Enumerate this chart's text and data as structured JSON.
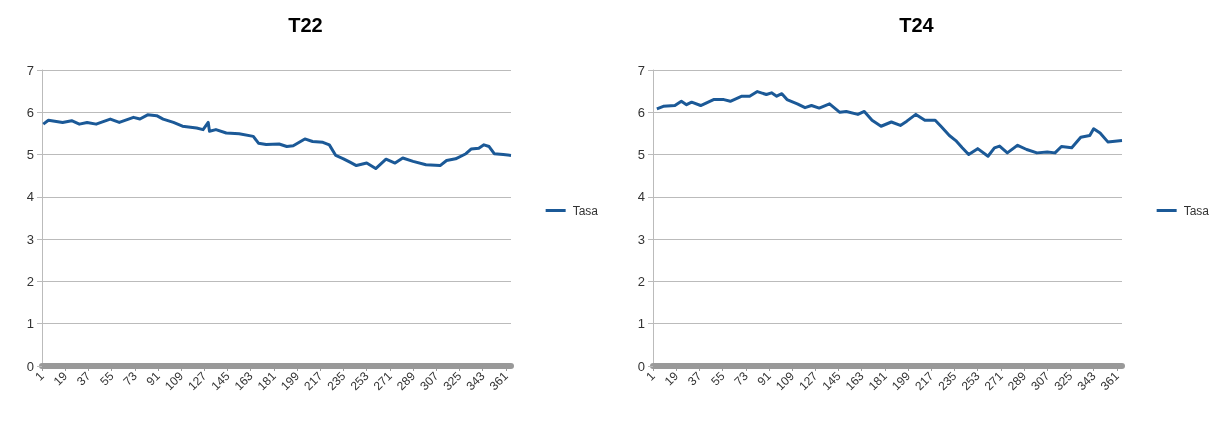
{
  "chart_data": [
    {
      "type": "line",
      "title": "T22",
      "legend": "right",
      "grid": "y",
      "marker": "none",
      "line_style": "solid",
      "xlim": [
        1,
        365
      ],
      "xticks": [
        1,
        19,
        37,
        55,
        73,
        91,
        109,
        127,
        145,
        163,
        181,
        199,
        217,
        235,
        253,
        271,
        289,
        307,
        325,
        343,
        361
      ],
      "ylim": [
        0,
        7
      ],
      "yticks": [
        0,
        1,
        2,
        3,
        4,
        5,
        6,
        7
      ],
      "series": [
        {
          "name": "Tasa",
          "color": "#1b5997",
          "x": [
            2,
            6,
            17,
            24,
            30,
            36,
            43,
            54,
            61,
            72,
            77,
            83,
            90,
            95,
            103,
            110,
            121,
            126,
            130,
            131,
            136,
            144,
            154,
            165,
            169,
            175,
            185,
            191,
            196,
            205,
            211,
            219,
            224,
            229,
            235,
            240,
            245,
            253,
            260,
            268,
            275,
            281,
            289,
            299,
            310,
            315,
            322,
            330,
            334,
            340,
            344,
            348,
            352,
            359,
            365
          ],
          "values": [
            5.72,
            5.81,
            5.76,
            5.8,
            5.72,
            5.76,
            5.72,
            5.84,
            5.76,
            5.88,
            5.84,
            5.94,
            5.92,
            5.84,
            5.76,
            5.67,
            5.63,
            5.59,
            5.76,
            5.55,
            5.59,
            5.51,
            5.49,
            5.43,
            5.27,
            5.24,
            5.25,
            5.19,
            5.21,
            5.37,
            5.31,
            5.29,
            5.23,
            4.98,
            4.9,
            4.82,
            4.74,
            4.8,
            4.67,
            4.89,
            4.8,
            4.92,
            4.84,
            4.76,
            4.74,
            4.86,
            4.9,
            5.02,
            5.13,
            5.15,
            5.23,
            5.19,
            5.02,
            5.0,
            4.98
          ]
        }
      ]
    },
    {
      "type": "line",
      "title": "T24",
      "legend": "right",
      "grid": "y",
      "marker": "none",
      "line_style": "solid",
      "xlim": [
        1,
        365
      ],
      "xticks": [
        1,
        19,
        37,
        55,
        73,
        91,
        109,
        127,
        145,
        163,
        181,
        199,
        217,
        235,
        253,
        271,
        289,
        307,
        325,
        343,
        361
      ],
      "ylim": [
        0,
        7
      ],
      "yticks": [
        0,
        1,
        2,
        3,
        4,
        5,
        6,
        7
      ],
      "series": [
        {
          "name": "Tasa",
          "color": "#1b5997",
          "x": [
            4,
            9,
            18,
            23,
            27,
            31,
            38,
            48,
            56,
            61,
            70,
            76,
            82,
            89,
            93,
            97,
            101,
            105,
            113,
            119,
            124,
            130,
            138,
            146,
            151,
            160,
            165,
            171,
            178,
            186,
            193,
            198,
            205,
            212,
            220,
            225,
            231,
            236,
            241,
            246,
            253,
            261,
            266,
            270,
            276,
            284,
            291,
            299,
            307,
            313,
            318,
            326,
            333,
            340,
            343,
            348,
            354,
            365
          ],
          "values": [
            6.08,
            6.14,
            6.16,
            6.26,
            6.18,
            6.24,
            6.16,
            6.3,
            6.3,
            6.26,
            6.38,
            6.38,
            6.49,
            6.42,
            6.46,
            6.38,
            6.44,
            6.3,
            6.2,
            6.11,
            6.16,
            6.1,
            6.2,
            6.0,
            6.02,
            5.95,
            6.02,
            5.81,
            5.67,
            5.77,
            5.69,
            5.79,
            5.95,
            5.81,
            5.81,
            5.65,
            5.45,
            5.33,
            5.16,
            5.0,
            5.14,
            4.96,
            5.16,
            5.2,
            5.04,
            5.22,
            5.12,
            5.04,
            5.06,
            5.04,
            5.19,
            5.16,
            5.41,
            5.45,
            5.61,
            5.51,
            5.3,
            5.33
          ]
        }
      ]
    }
  ]
}
